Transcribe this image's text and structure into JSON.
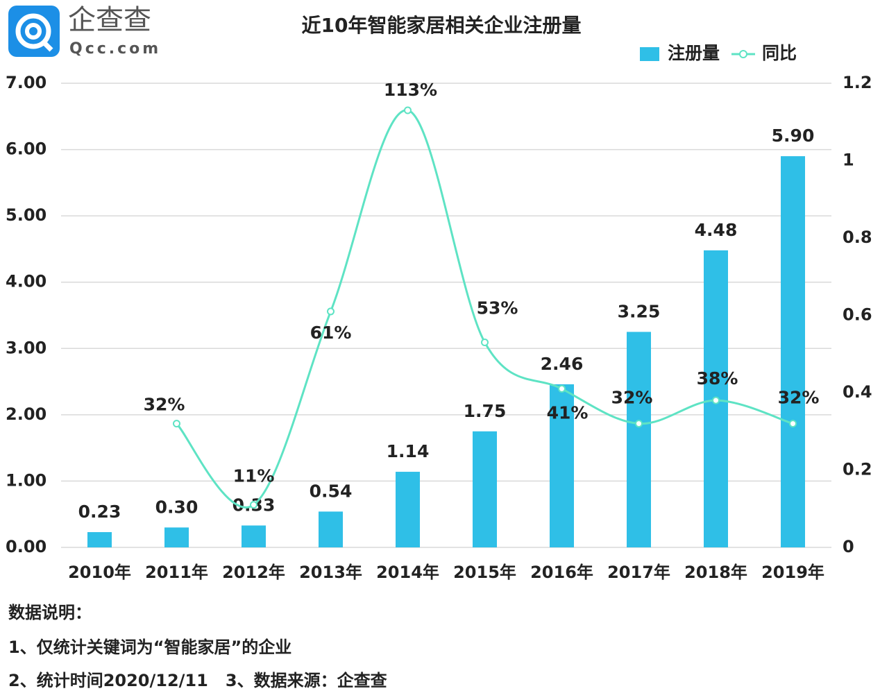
{
  "logo": {
    "name": "企查查",
    "site": "Qcc.com"
  },
  "chart_data": {
    "type": "bar-line",
    "title": "近10年智能家居相关企业注册量",
    "categories": [
      "2010年",
      "2011年",
      "2012年",
      "2013年",
      "2014年",
      "2015年",
      "2016年",
      "2017年",
      "2018年",
      "2019年"
    ],
    "series": [
      {
        "name": "注册量",
        "type": "bar",
        "color": "#2fbfe7",
        "values": [
          0.23,
          0.3,
          0.33,
          0.54,
          1.14,
          1.75,
          2.46,
          3.25,
          4.48,
          5.9
        ],
        "value_labels": [
          "0.23",
          "0.30",
          "0.33",
          "0.54",
          "1.14",
          "1.75",
          "2.46",
          "3.25",
          "4.48",
          "5.90"
        ]
      },
      {
        "name": "同比",
        "type": "line",
        "axis": "y2",
        "color": "#5ee3c4",
        "values": [
          null,
          0.32,
          0.11,
          0.61,
          1.13,
          0.53,
          0.41,
          0.32,
          0.38,
          0.32
        ],
        "value_labels": [
          null,
          "32%",
          "11%",
          "61%",
          "113%",
          "53%",
          "41%",
          "32%",
          "38%",
          "32%"
        ]
      }
    ],
    "ylim": [
      0,
      7
    ],
    "yticks": [
      {
        "value": 0,
        "label": "0.00"
      },
      {
        "value": 1,
        "label": "1.00"
      },
      {
        "value": 2,
        "label": "2.00"
      },
      {
        "value": 3,
        "label": "3.00"
      },
      {
        "value": 4,
        "label": "4.00"
      },
      {
        "value": 5,
        "label": "5.00"
      },
      {
        "value": 6,
        "label": "6.00"
      },
      {
        "value": 7,
        "label": "7.00"
      }
    ],
    "y2lim": [
      0,
      1.2
    ],
    "y2ticks": [
      0,
      0.2,
      0.4,
      0.6,
      0.8,
      1,
      1.2
    ],
    "grid": true,
    "legend": "upper right"
  },
  "notes": [
    "数据说明：",
    "1、仅统计关键词为“智能家居”的企业",
    "2、统计时间2020/12/11   3、数据来源：企查查"
  ]
}
